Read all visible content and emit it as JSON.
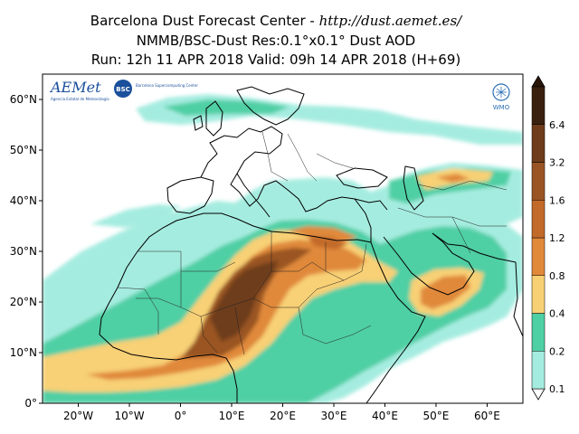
{
  "header": {
    "line1_prefix": "Barcelona Dust Forecast Center - ",
    "line1_url": "http://dust.aemet.es/",
    "line2": "NMMB/BSC-Dust   Res:0.1°x0.1°   Dust AOD",
    "line3": "Run: 12h 11 APR 2018   Valid: 09h 14 APR 2018 (H+69)"
  },
  "map": {
    "lon_range": [
      -27,
      67
    ],
    "lat_range": [
      0,
      65
    ],
    "x_ticks": [
      "20°W",
      "10°W",
      "0°",
      "10°E",
      "20°E",
      "30°E",
      "40°E",
      "50°E",
      "60°E"
    ],
    "x_tick_values": [
      -20,
      -10,
      0,
      10,
      20,
      30,
      40,
      50,
      60
    ],
    "y_ticks": [
      "0°",
      "10°N",
      "20°N",
      "30°N",
      "40°N",
      "50°N",
      "60°N"
    ],
    "y_tick_values": [
      0,
      10,
      20,
      30,
      40,
      50,
      60
    ]
  },
  "colorbar": {
    "labels": [
      "0.1",
      "0.2",
      "0.4",
      "0.8",
      "1.2",
      "1.6",
      "3.2",
      "6.4"
    ],
    "colors": [
      "#a5ece0",
      "#4fcfa4",
      "#f8d074",
      "#e0893a",
      "#c26a2a",
      "#9a5424",
      "#6e3c1a",
      "#3a200e"
    ],
    "extend_max_color": "#2a1608"
  },
  "logos": {
    "aemet": "AEMet",
    "aemet_sub": "Agencia Estatal de Meteorología",
    "bsc": "BSC",
    "bsc_text": "Barcelona Supercomputing Center",
    "wmo": "WMO"
  }
}
